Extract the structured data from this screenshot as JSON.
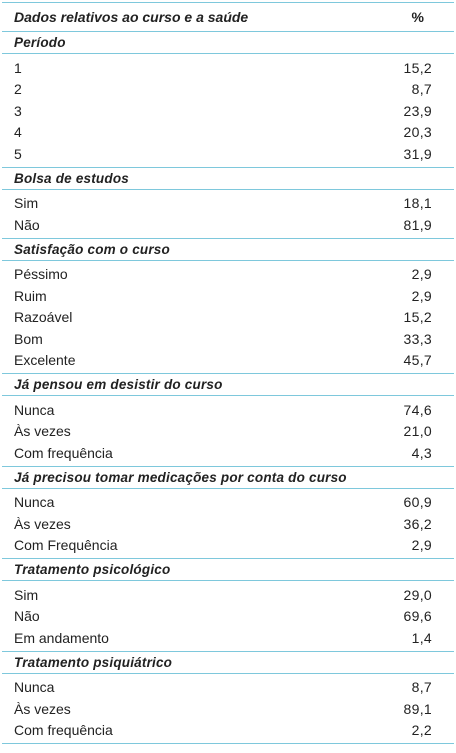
{
  "header": {
    "label": "Dados relativos ao curso e a saúde",
    "pct": "%"
  },
  "sections": [
    {
      "title": "Período",
      "rows": [
        {
          "label": "1",
          "value": "15,2"
        },
        {
          "label": "2",
          "value": "8,7"
        },
        {
          "label": "3",
          "value": "23,9"
        },
        {
          "label": "4",
          "value": "20,3"
        },
        {
          "label": "5",
          "value": "31,9"
        }
      ]
    },
    {
      "title": "Bolsa de estudos",
      "rows": [
        {
          "label": "Sim",
          "value": "18,1"
        },
        {
          "label": "Não",
          "value": "81,9"
        }
      ]
    },
    {
      "title": "Satisfação com o curso",
      "rows": [
        {
          "label": "Péssimo",
          "value": "2,9"
        },
        {
          "label": "Ruim",
          "value": "2,9"
        },
        {
          "label": "Razoável",
          "value": "15,2"
        },
        {
          "label": "Bom",
          "value": "33,3"
        },
        {
          "label": "Excelente",
          "value": "45,7"
        }
      ]
    },
    {
      "title": "Já pensou em desistir do curso",
      "rows": [
        {
          "label": "Nunca",
          "value": "74,6"
        },
        {
          "label": "Às vezes",
          "value": "21,0"
        },
        {
          "label": "Com frequência",
          "value": "4,3"
        }
      ]
    },
    {
      "title": "Já precisou tomar medicações por conta do curso",
      "rows": [
        {
          "label": "Nunca",
          "value": "60,9"
        },
        {
          "label": "Às vezes",
          "value": "36,2"
        },
        {
          "label": "Com Frequência",
          "value": "2,9"
        }
      ]
    },
    {
      "title": "Tratamento psicológico",
      "rows": [
        {
          "label": "Sim",
          "value": "29,0"
        },
        {
          "label": "Não",
          "value": "69,6"
        },
        {
          "label": "Em andamento",
          "value": "1,4"
        }
      ]
    },
    {
      "title": "Tratamento psiquiátrico",
      "rows": [
        {
          "label": "Nunca",
          "value": "8,7"
        },
        {
          "label": "Às vezes",
          "value": "89,1"
        },
        {
          "label": "Com frequência",
          "value": "2,2"
        }
      ]
    }
  ]
}
